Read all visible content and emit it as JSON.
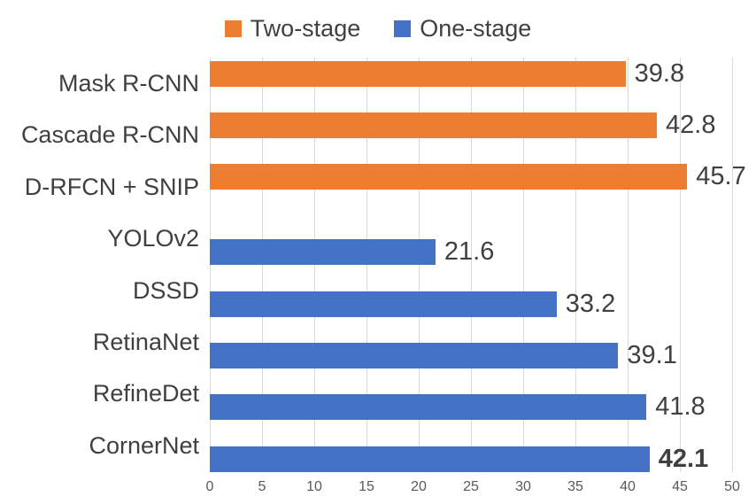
{
  "legend": {
    "items": [
      {
        "label": "Two-stage",
        "color": "#ED7D31"
      },
      {
        "label": "One-stage",
        "color": "#4472C4"
      }
    ]
  },
  "chart_data": {
    "type": "bar",
    "orientation": "horizontal",
    "title": "",
    "xlabel": "",
    "ylabel": "",
    "xlim": [
      0,
      50
    ],
    "x_ticks": [
      0,
      5,
      10,
      15,
      20,
      25,
      30,
      35,
      40,
      45,
      50
    ],
    "grid": true,
    "legend_position": "top",
    "categories": [
      "Mask R-CNN",
      "Cascade R-CNN",
      "D-RFCN + SNIP",
      "YOLOv2",
      "DSSD",
      "RetinaNet",
      "RefineDet",
      "CornerNet"
    ],
    "series_names": [
      "Two-stage",
      "One-stage"
    ],
    "rows": [
      {
        "label": "Mask R-CNN",
        "series": "Two-stage",
        "value": 39.8,
        "value_label": "39.8",
        "bold": false
      },
      {
        "label": "Cascade R-CNN",
        "series": "Two-stage",
        "value": 42.8,
        "value_label": "42.8",
        "bold": false
      },
      {
        "label": "D-RFCN + SNIP",
        "series": "Two-stage",
        "value": 45.7,
        "value_label": "45.7",
        "bold": false
      },
      {
        "label": "YOLOv2",
        "series": "One-stage",
        "value": 21.6,
        "value_label": "21.6",
        "bold": false
      },
      {
        "label": "DSSD",
        "series": "One-stage",
        "value": 33.2,
        "value_label": "33.2",
        "bold": false
      },
      {
        "label": "RetinaNet",
        "series": "One-stage",
        "value": 39.1,
        "value_label": "39.1",
        "bold": false
      },
      {
        "label": "RefineDet",
        "series": "One-stage",
        "value": 41.8,
        "value_label": "41.8",
        "bold": false
      },
      {
        "label": "CornerNet",
        "series": "One-stage",
        "value": 42.1,
        "value_label": "42.1",
        "bold": true
      }
    ],
    "colors": {
      "two_stage": "#ED7D31",
      "one_stage": "#4472C4",
      "gridline": "#D9D9D9",
      "tick_text": "#595959",
      "label_text": "#404040"
    }
  }
}
